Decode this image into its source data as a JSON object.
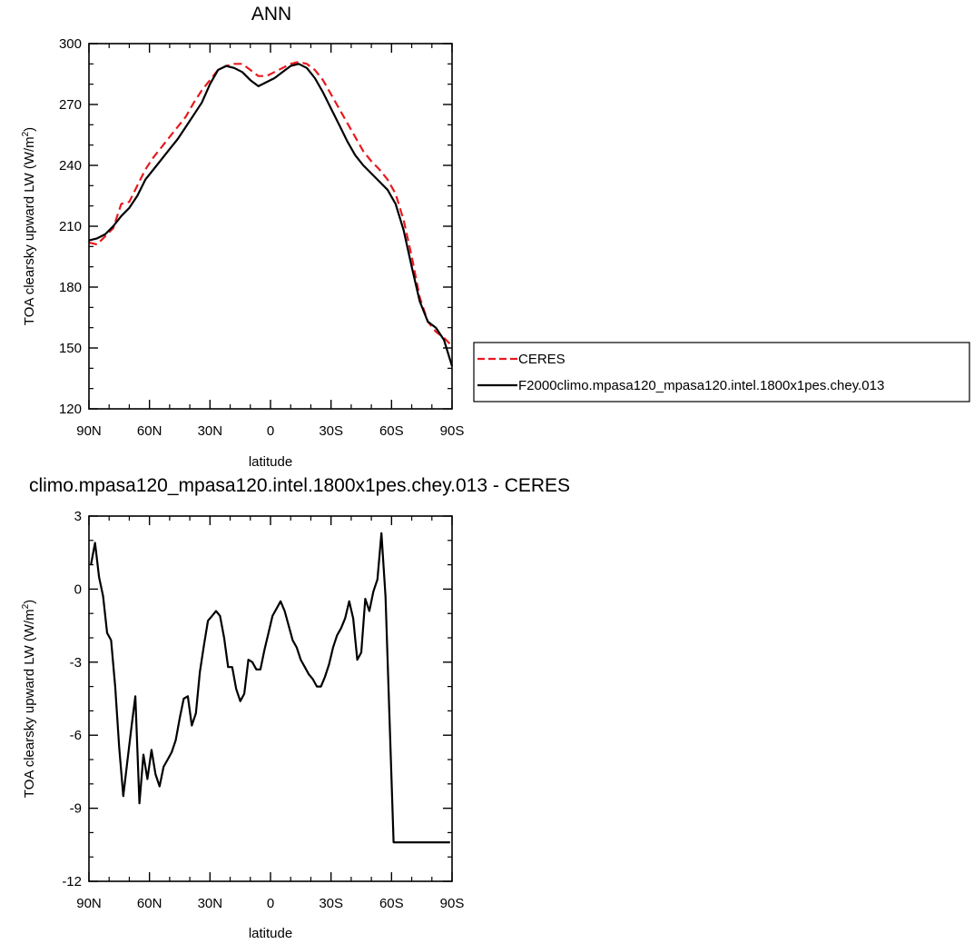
{
  "chart_data": [
    {
      "type": "line",
      "title": "ANN",
      "xlabel": "latitude",
      "ylabel": "TOA clearsky upward LW (W/m",
      "ylabel_sup": "2",
      "ylabel_end": ")",
      "xlim": [
        90,
        -90
      ],
      "ylim": [
        120,
        300
      ],
      "xticks": [
        {
          "value": 90,
          "label": "90N"
        },
        {
          "value": 60,
          "label": "60N"
        },
        {
          "value": 30,
          "label": "30N"
        },
        {
          "value": 0,
          "label": "0"
        },
        {
          "value": -30,
          "label": "30S"
        },
        {
          "value": -60,
          "label": "60S"
        },
        {
          "value": -90,
          "label": "90S"
        }
      ],
      "yticks": [
        {
          "value": 120,
          "label": "120"
        },
        {
          "value": 150,
          "label": "150"
        },
        {
          "value": 180,
          "label": "180"
        },
        {
          "value": 210,
          "label": "210"
        },
        {
          "value": 240,
          "label": "240"
        },
        {
          "value": 270,
          "label": "270"
        },
        {
          "value": 300,
          "label": "300"
        }
      ],
      "legend_position": "right",
      "series": [
        {
          "name": "CERES",
          "color": "#e8191f",
          "style": "dashed",
          "x": [
            90,
            86,
            82,
            78,
            74,
            70,
            66,
            62,
            58,
            54,
            50,
            46,
            42,
            38,
            34,
            30,
            26,
            22,
            18,
            14,
            10,
            6,
            2,
            -2,
            -6,
            -10,
            -14,
            -18,
            -22,
            -26,
            -30,
            -34,
            -38,
            -42,
            -46,
            -50,
            -54,
            -58,
            -62,
            -66,
            -70,
            -74,
            -78,
            -82,
            -86,
            -90
          ],
          "y": [
            202,
            201,
            205,
            209,
            221,
            222,
            230,
            238,
            244,
            249,
            254,
            259,
            264,
            271,
            277,
            282,
            287,
            289,
            290,
            290,
            287,
            284,
            284,
            286,
            288,
            290,
            291,
            290,
            287,
            282,
            275,
            268,
            261,
            254,
            247,
            242,
            238,
            233,
            226,
            213,
            195,
            175,
            163,
            158,
            155,
            151
          ]
        },
        {
          "name": "F2000climo.mpasa120_mpasa120.intel.1800x1pes.chey.013",
          "color": "#000000",
          "style": "solid",
          "x": [
            90,
            86,
            82,
            78,
            74,
            70,
            66,
            62,
            58,
            54,
            50,
            46,
            42,
            38,
            34,
            30,
            26,
            22,
            18,
            14,
            10,
            6,
            2,
            -2,
            -6,
            -10,
            -14,
            -18,
            -22,
            -26,
            -30,
            -34,
            -38,
            -42,
            -46,
            -50,
            -54,
            -58,
            -62,
            -66,
            -70,
            -74,
            -78,
            -82,
            -86,
            -90
          ],
          "y": [
            203,
            204,
            206,
            210,
            215,
            219,
            225,
            233,
            238,
            243,
            248,
            253,
            259,
            265,
            271,
            280,
            287,
            289,
            288,
            286,
            282,
            279,
            281,
            283,
            286,
            289,
            290,
            288,
            283,
            276,
            268,
            260,
            252,
            245,
            240,
            236,
            232,
            228,
            221,
            208,
            190,
            173,
            163,
            160,
            154,
            141
          ]
        }
      ]
    },
    {
      "type": "line",
      "title": "climo.mpasa120_mpasa120.intel.1800x1pes.chey.013 - CERES",
      "xlabel": "latitude",
      "ylabel": "TOA clearsky upward LW (W/m",
      "ylabel_sup": "2",
      "ylabel_end": ")",
      "xlim": [
        90,
        -90
      ],
      "ylim": [
        -12,
        3
      ],
      "xticks": [
        {
          "value": 90,
          "label": "90N"
        },
        {
          "value": 60,
          "label": "60N"
        },
        {
          "value": 30,
          "label": "30N"
        },
        {
          "value": 0,
          "label": "0"
        },
        {
          "value": -30,
          "label": "30S"
        },
        {
          "value": -60,
          "label": "60S"
        },
        {
          "value": -90,
          "label": "90S"
        }
      ],
      "yticks": [
        {
          "value": -12,
          "label": "-12"
        },
        {
          "value": -9,
          "label": "-9"
        },
        {
          "value": -6,
          "label": "-6"
        },
        {
          "value": -3,
          "label": "-3"
        },
        {
          "value": 0,
          "label": "0"
        },
        {
          "value": 3,
          "label": "3"
        }
      ],
      "series": [
        {
          "color": "#000000",
          "style": "solid",
          "x": [
            89,
            87,
            85,
            83,
            81,
            79,
            77,
            75,
            73,
            71,
            69,
            67,
            65,
            63,
            61,
            59,
            57,
            55,
            53,
            51,
            49,
            47,
            45,
            43,
            41,
            39,
            37,
            35,
            33,
            31,
            29,
            27,
            25,
            23,
            21,
            19,
            17,
            15,
            13,
            11,
            9,
            7,
            5,
            3,
            1,
            -1,
            -3,
            -5,
            -7,
            -9,
            -11,
            -13,
            -15,
            -17,
            -19,
            -21,
            -23,
            -25,
            -27,
            -29,
            -31,
            -33,
            -35,
            -37,
            -39,
            -41,
            -43,
            -45,
            -47,
            -49,
            -51,
            -53,
            -55,
            -57,
            -59,
            -61,
            -63,
            -65,
            -67,
            -69,
            -71,
            -73,
            -75,
            -77,
            -79,
            -81,
            -83,
            -85,
            -87,
            -89
          ],
          "y": [
            1.0,
            1.9,
            0.5,
            -0.3,
            -1.8,
            -2.1,
            -4.0,
            -6.5,
            -8.5,
            -7.1,
            -5.7,
            -4.4,
            -8.8,
            -6.8,
            -7.8,
            -6.6,
            -7.6,
            -8.1,
            -7.3,
            -7.0,
            -6.7,
            -6.2,
            -5.3,
            -4.5,
            -4.4,
            -5.6,
            -5.1,
            -3.4,
            -2.3,
            -1.3,
            -1.1,
            -0.9,
            -1.1,
            -2.0,
            -3.2,
            -3.2,
            -4.1,
            -4.6,
            -4.3,
            -2.9,
            -3.0,
            -3.3,
            -3.3,
            -2.5,
            -1.8,
            -1.1,
            -0.8,
            -0.5,
            -0.9,
            -1.5,
            -2.1,
            -2.4,
            -2.9,
            -3.2,
            -3.5,
            -3.7,
            -4.0,
            -4.0,
            -3.6,
            -3.1,
            -2.4,
            -1.9,
            -1.6,
            -1.2,
            -0.5,
            -1.2,
            -2.9,
            -2.6,
            -0.4,
            -0.9,
            -0.1,
            0.4,
            2.3,
            -0.3,
            -5.3,
            -10.4,
            -10.4,
            -10.4,
            -10.4,
            -10.4,
            -10.4,
            -10.4,
            -10.4,
            -10.4,
            -10.4,
            -10.4,
            -10.4,
            -10.4,
            -10.4,
            -10.4
          ]
        }
      ]
    }
  ]
}
